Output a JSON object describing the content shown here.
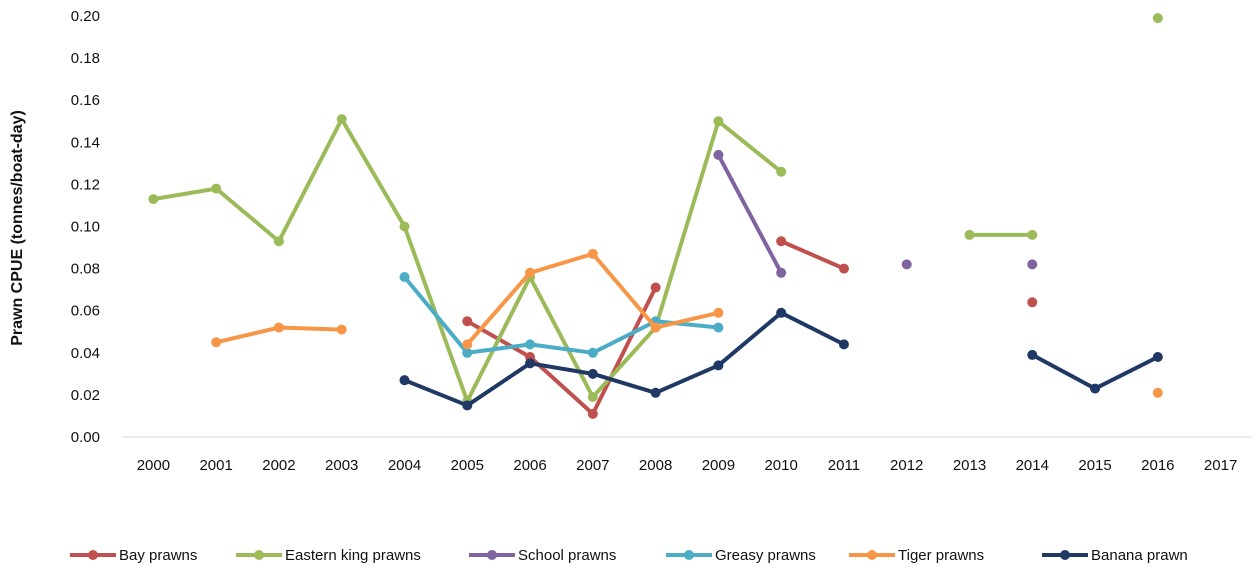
{
  "chart_data": {
    "type": "line",
    "ylabel": "Prawn CPUE (tonnes/boat-day)",
    "xlabel": "",
    "categories": [
      "2000",
      "2001",
      "2002",
      "2003",
      "2004",
      "2005",
      "2006",
      "2007",
      "2008",
      "2009",
      "2010",
      "2011",
      "2012",
      "2013",
      "2014",
      "2015",
      "2016",
      "2017"
    ],
    "ylim": [
      0,
      0.2
    ],
    "yticks": [
      "0.00",
      "0.02",
      "0.04",
      "0.06",
      "0.08",
      "0.10",
      "0.12",
      "0.14",
      "0.16",
      "0.18",
      "0.20"
    ],
    "grid": false,
    "legend_position": "bottom",
    "series": [
      {
        "name": "Bay prawns",
        "color": "#C0504D",
        "values": [
          null,
          null,
          null,
          null,
          null,
          0.055,
          0.038,
          0.011,
          0.071,
          null,
          0.093,
          0.08,
          null,
          null,
          0.064,
          null,
          null,
          null
        ]
      },
      {
        "name": "Eastern king prawns",
        "color": "#9BBB59",
        "values": [
          0.113,
          0.118,
          0.093,
          0.151,
          0.1,
          0.017,
          0.076,
          0.019,
          0.052,
          0.15,
          0.126,
          null,
          null,
          0.096,
          0.096,
          null,
          0.199,
          null
        ]
      },
      {
        "name": "School prawns",
        "color": "#8064A2",
        "values": [
          null,
          null,
          null,
          null,
          null,
          null,
          null,
          null,
          null,
          0.134,
          0.078,
          null,
          0.082,
          null,
          0.082,
          null,
          null,
          null
        ]
      },
      {
        "name": "Greasy prawns",
        "color": "#4BACC6",
        "values": [
          null,
          null,
          null,
          null,
          0.076,
          0.04,
          0.044,
          0.04,
          0.055,
          0.052,
          null,
          null,
          null,
          null,
          null,
          null,
          null,
          null
        ]
      },
      {
        "name": "Tiger prawns",
        "color": "#F79646",
        "values": [
          null,
          0.045,
          0.052,
          0.051,
          null,
          0.044,
          0.078,
          0.087,
          0.052,
          0.059,
          null,
          null,
          null,
          null,
          null,
          null,
          0.021,
          null
        ]
      },
      {
        "name": "Banana prawn",
        "color": "#1F3864",
        "values": [
          null,
          null,
          null,
          null,
          0.027,
          0.015,
          0.035,
          0.03,
          0.021,
          0.034,
          0.059,
          0.044,
          null,
          null,
          0.039,
          0.023,
          0.038,
          null
        ]
      }
    ]
  }
}
